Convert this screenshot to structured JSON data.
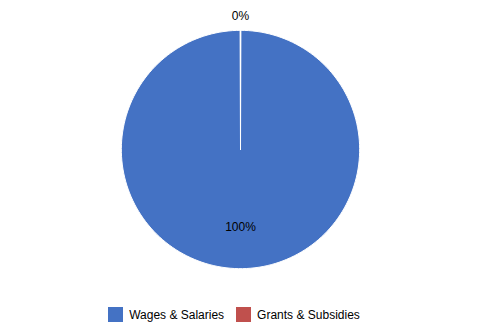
{
  "chart_data": {
    "type": "pie",
    "categories": [
      "Wages & Salaries",
      "Grants & Subsidies"
    ],
    "values": [
      100,
      0
    ],
    "value_labels": [
      "100%",
      "0%"
    ],
    "colors": [
      "#4472C4",
      "#C0504D"
    ],
    "data_labels": true,
    "legend": "bottom"
  }
}
